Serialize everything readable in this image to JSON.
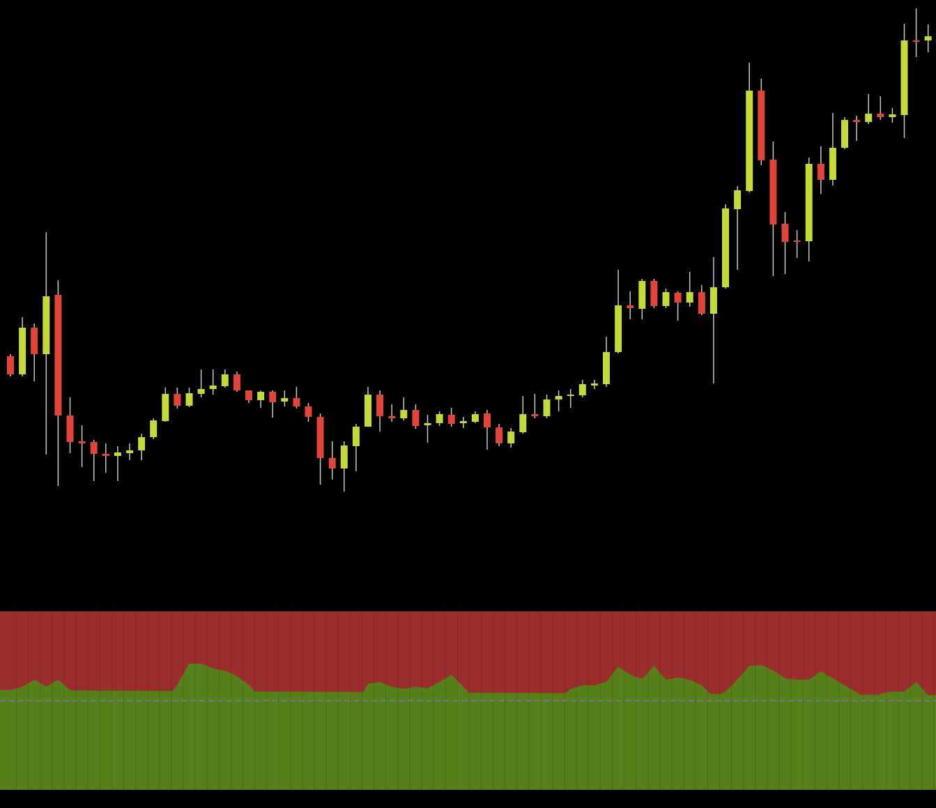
{
  "chart_data": [
    {
      "type": "candlestick",
      "up_color": "#c6d93b",
      "down_color": "#e0443a",
      "wick_color": "#c8c8c8",
      "ylim": [
        125,
        1000
      ],
      "open": [
        489,
        463,
        530,
        492,
        577,
        404,
        367,
        366,
        349,
        346,
        350,
        354,
        373,
        396,
        435,
        418,
        435,
        442,
        446,
        463,
        440,
        426,
        438,
        424,
        429,
        417,
        402,
        343,
        328,
        360,
        388,
        434,
        403,
        400,
        412,
        390,
        393,
        405,
        393,
        395,
        407,
        387,
        364,
        380,
        406,
        403,
        427,
        432,
        433,
        447,
        449,
        495,
        562,
        557,
        597,
        561,
        580,
        566,
        581,
        550,
        588,
        700,
        726,
        870,
        771,
        679,
        655,
        654,
        765,
        742,
        788,
        828,
        825,
        837,
        832,
        835,
        942,
        942
      ],
      "high": [
        492,
        545,
        536,
        667,
        598,
        430,
        390,
        369,
        364,
        360,
        364,
        378,
        400,
        444,
        444,
        444,
        470,
        470,
        470,
        467,
        440,
        440,
        440,
        440,
        445,
        422,
        407,
        367,
        367,
        392,
        445,
        440,
        420,
        430,
        420,
        405,
        410,
        415,
        402,
        410,
        412,
        392,
        386,
        432,
        435,
        434,
        440,
        442,
        455,
        455,
        517,
        613,
        582,
        600,
        600,
        586,
        582,
        610,
        591,
        631,
        707,
        733,
        910,
        887,
        797,
        696,
        670,
        774,
        790,
        838,
        832,
        834,
        865,
        862,
        845,
        966,
        988,
        965
      ],
      "low": [
        460,
        460,
        453,
        348,
        303,
        350,
        330,
        310,
        322,
        310,
        340,
        340,
        370,
        395,
        414,
        416,
        430,
        434,
        444,
        438,
        422,
        415,
        401,
        417,
        414,
        395,
        305,
        312,
        295,
        324,
        388,
        381,
        395,
        397,
        385,
        365,
        389,
        388,
        386,
        393,
        355,
        360,
        358,
        378,
        400,
        400,
        410,
        415,
        430,
        442,
        445,
        493,
        542,
        542,
        558,
        558,
        540,
        560,
        548,
        450,
        586,
        613,
        724,
        763,
        604,
        607,
        630,
        625,
        722,
        734,
        786,
        798,
        822,
        828,
        824,
        802,
        918,
        925
      ],
      "close": [
        463,
        530,
        492,
        575,
        404,
        366,
        364,
        349,
        346,
        351,
        354,
        373,
        397,
        435,
        418,
        436,
        442,
        447,
        463,
        440,
        426,
        438,
        423,
        429,
        417,
        402,
        343,
        328,
        361,
        388,
        434,
        403,
        400,
        412,
        389,
        393,
        406,
        392,
        396,
        406,
        387,
        364,
        381,
        406,
        403,
        427,
        432,
        434,
        449,
        450,
        495,
        562,
        558,
        597,
        561,
        581,
        566,
        581,
        550,
        588,
        701,
        727,
        870,
        770,
        678,
        653,
        653,
        765,
        742,
        788,
        828,
        825,
        837,
        832,
        836,
        942,
        940,
        948
      ]
    },
    {
      "type": "area",
      "color": "#57801a",
      "background_color": "#9a2e2c",
      "level_color": "#7a6fa0",
      "ylim": [
        0,
        100
      ],
      "level": 50,
      "values": [
        55.9,
        57.8,
        61.7,
        57.8,
        61.7,
        55.9,
        50.4,
        50.4,
        50.4,
        51.2,
        53.1,
        52.3,
        53.1,
        49.6,
        59.0,
        70.7,
        70.7,
        68.0,
        66.8,
        63.7,
        59.0,
        50.8,
        49.6,
        46.9,
        48.4,
        44.9,
        41.8,
        41.0,
        37.9,
        48.0,
        59.4,
        60.5,
        57.8,
        56.6,
        57.8,
        57.0,
        60.5,
        64.5,
        57.8,
        50.0,
        41.8,
        44.1,
        43.4,
        48.0,
        54.7,
        50.0,
        50.4,
        56.6,
        58.6,
        58.6,
        60.5,
        69.1,
        64.5,
        62.1,
        69.5,
        61.7,
        62.9,
        61.7,
        58.6,
        52.0,
        55.1,
        61.7,
        69.5,
        69.9,
        66.8,
        62.5,
        61.7,
        61.7,
        66.4,
        62.5,
        58.6,
        54.7,
        48.8,
        53.9,
        55.1,
        55.1,
        60.5,
        53.1
      ]
    }
  ]
}
